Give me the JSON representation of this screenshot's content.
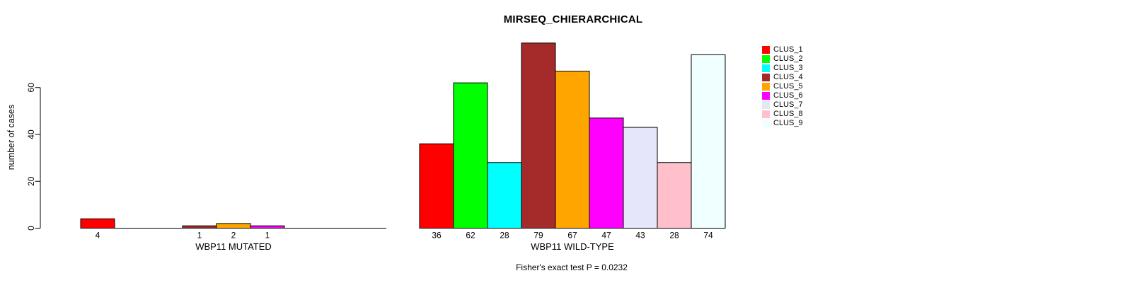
{
  "chart_data": {
    "type": "bar",
    "title": "MIRSEQ_CHIERARCHICAL",
    "ylabel": "number of cases",
    "ylim": [
      0,
      79
    ],
    "yticks": [
      0,
      20,
      40,
      60
    ],
    "grid": false,
    "legend_position": "top-right",
    "clusters": [
      "CLUS_1",
      "CLUS_2",
      "CLUS_3",
      "CLUS_4",
      "CLUS_5",
      "CLUS_6",
      "CLUS_7",
      "CLUS_8",
      "CLUS_9"
    ],
    "colors": [
      "#FF0000",
      "#00FF00",
      "#00FFFF",
      "#A52A2A",
      "#FFA500",
      "#FF00FF",
      "#E6E6FA",
      "#FFC0CB",
      "#F0FFFF"
    ],
    "bar_border_color": "#000000",
    "groups": [
      {
        "label": "WBP11 MUTATED",
        "values": [
          4,
          0,
          0,
          1,
          2,
          1,
          0,
          0,
          0
        ]
      },
      {
        "label": "WBP11 WILD-TYPE",
        "values": [
          36,
          62,
          28,
          79,
          67,
          47,
          43,
          28,
          74
        ]
      }
    ],
    "bar_labels_rule": "value shown under bar only when value > 0",
    "annotation": "Fisher's exact test P = 0.0232"
  }
}
